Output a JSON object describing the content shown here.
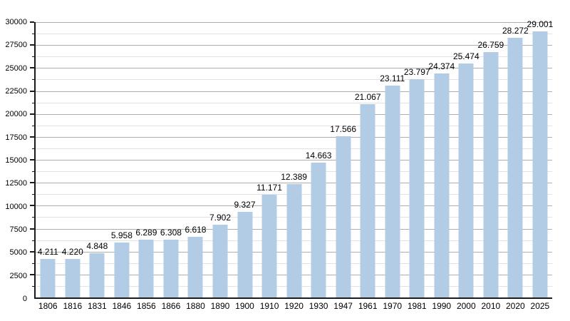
{
  "chart": {
    "background": "#ffffff",
    "bar_color": "#b3cce6",
    "axis_color": "#1c1c1c",
    "grid_major_color": "#adadad",
    "grid_minor_color": "#e2e2e2",
    "text_color": "#000000"
  },
  "chart_data": {
    "type": "bar",
    "title": "",
    "xlabel": "",
    "ylabel": "",
    "legend_visible": false,
    "grid": "major-and-minor-horizontal",
    "categories": [
      "1806",
      "1816",
      "1831",
      "1846",
      "1856",
      "1866",
      "1880",
      "1890",
      "1900",
      "1910",
      "1920",
      "1930",
      "1947",
      "1961",
      "1970",
      "1981",
      "1990",
      "2000",
      "2010",
      "2020",
      "2025"
    ],
    "values": [
      4211,
      4220,
      4848,
      5958,
      6289,
      6308,
      6618,
      7902,
      9327,
      11171,
      12389,
      14663,
      17566,
      21067,
      23111,
      23797,
      24374,
      25474,
      26759,
      28272,
      29001
    ],
    "value_labels": [
      "4.211",
      "4.220",
      "4.848",
      "5.958",
      "6.289",
      "6.308",
      "6.618",
      "7.902",
      "9.327",
      "11.171",
      "12.389",
      "14.663",
      "17.566",
      "21.067",
      "23.111",
      "23.797",
      "24.374",
      "25.474",
      "26.759",
      "28.272",
      "29.001"
    ],
    "ylim": [
      0,
      30000
    ],
    "y_major_step": 2500,
    "y_minor_step": 1250,
    "y_tick_values": [
      0,
      2500,
      5000,
      7500,
      10000,
      12500,
      15000,
      17500,
      20000,
      22500,
      25000,
      27500,
      30000
    ],
    "y_tick_labels": [
      "0",
      "2500",
      "5000",
      "7500",
      "10000",
      "12500",
      "15000",
      "17500",
      "20000",
      "22500",
      "25000",
      "27500",
      "30000"
    ]
  }
}
